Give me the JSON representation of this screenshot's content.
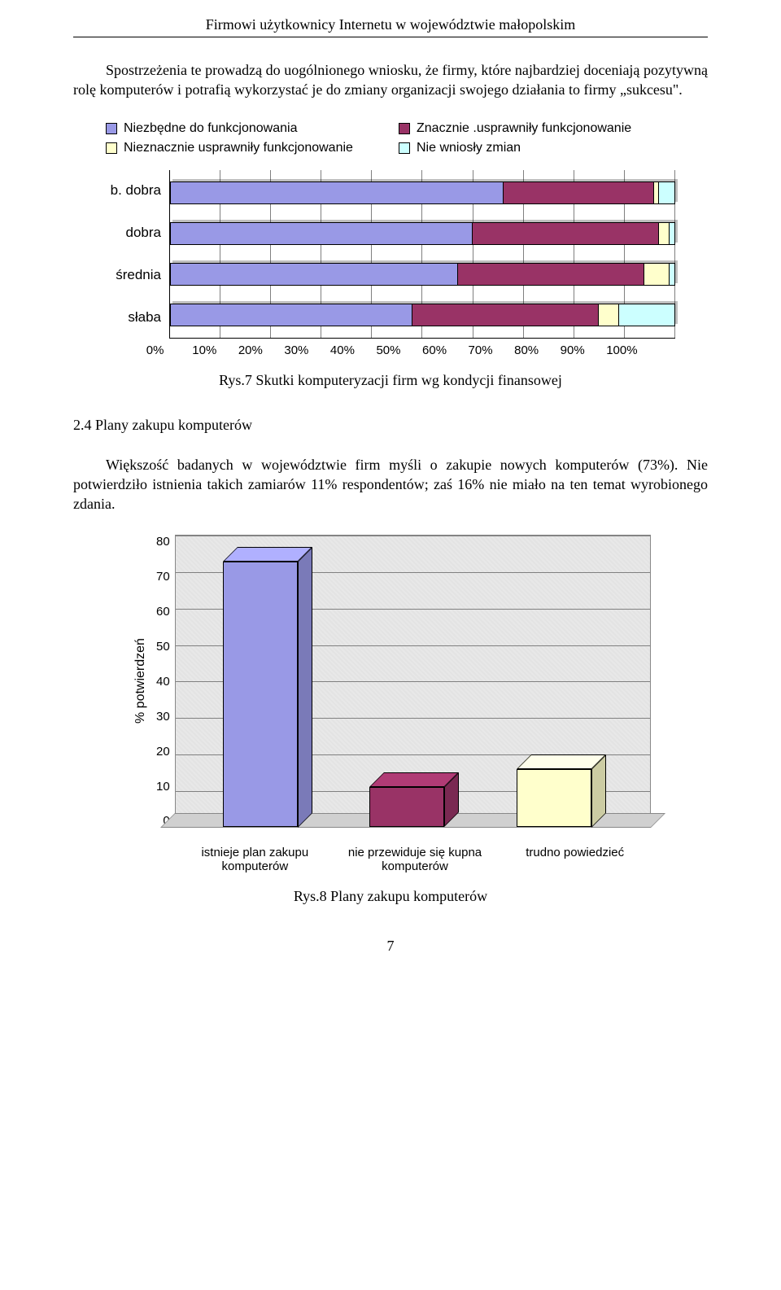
{
  "header": "Firmowi użytkownicy Internetu w województwie małopolskim",
  "para1": "Spostrzeżenia te prowadzą do uogólnionego wniosku, że firmy, które najbardziej doceniają pozytywną rolę komputerów i potrafią wykorzystać je do zmiany organizacji swojego działania to firmy „sukcesu\".",
  "chart1": {
    "type": "stacked_bar_horizontal",
    "legend": [
      {
        "label": "Niezbędne do funkcjonowania",
        "color": "#9999e6"
      },
      {
        "label": "Znacznie .usprawniły funkcjonowanie",
        "color": "#993366"
      },
      {
        "label": "Nieznacznie usprawniły funkcjonowanie",
        "color": "#ffffcc"
      },
      {
        "label": "Nie wniosły zmian",
        "color": "#ccffff"
      }
    ],
    "categories": [
      "b. dobra",
      "dobra",
      "średnia",
      "słaba"
    ],
    "series_pct": [
      [
        66,
        30,
        1,
        3
      ],
      [
        60,
        37,
        2,
        1
      ],
      [
        57,
        37,
        5,
        1
      ],
      [
        48,
        37,
        4,
        11
      ]
    ],
    "xticks": [
      "0%",
      "10%",
      "20%",
      "30%",
      "40%",
      "50%",
      "60%",
      "70%",
      "80%",
      "90%",
      "100%"
    ],
    "label_fontsize": 17,
    "tick_fontsize": 15,
    "grid_color": "#808080",
    "caption": "Rys.7 Skutki komputeryzacji firm wg kondycji finansowej"
  },
  "section_heading": "2.4 Plany zakupu komputerów",
  "para2": "Większość badanych w województwie firm myśli o zakupie nowych komputerów (73%). Nie potwierdziło istnienia takich zamiarów 11% respondentów; zaś 16% nie miało na ten temat wyrobionego zdania.",
  "chart2": {
    "type": "bar_3d",
    "ylabel": "% potwierdzeń",
    "yticks": [
      0,
      10,
      20,
      30,
      40,
      50,
      60,
      70,
      80
    ],
    "ymax": 80,
    "categories": [
      "istnieje plan zakupu komputerów",
      "nie przewiduje się kupna komputerów",
      "trudno powiedzieć"
    ],
    "values": [
      73,
      11,
      16
    ],
    "bar_colors": [
      "#9999e6",
      "#993366",
      "#ffffcc"
    ],
    "background_color": "#e8e8e8",
    "grid_color": "#808080",
    "label_fontsize": 15,
    "caption": "Rys.8 Plany zakupu komputerów"
  },
  "page_number": "7"
}
